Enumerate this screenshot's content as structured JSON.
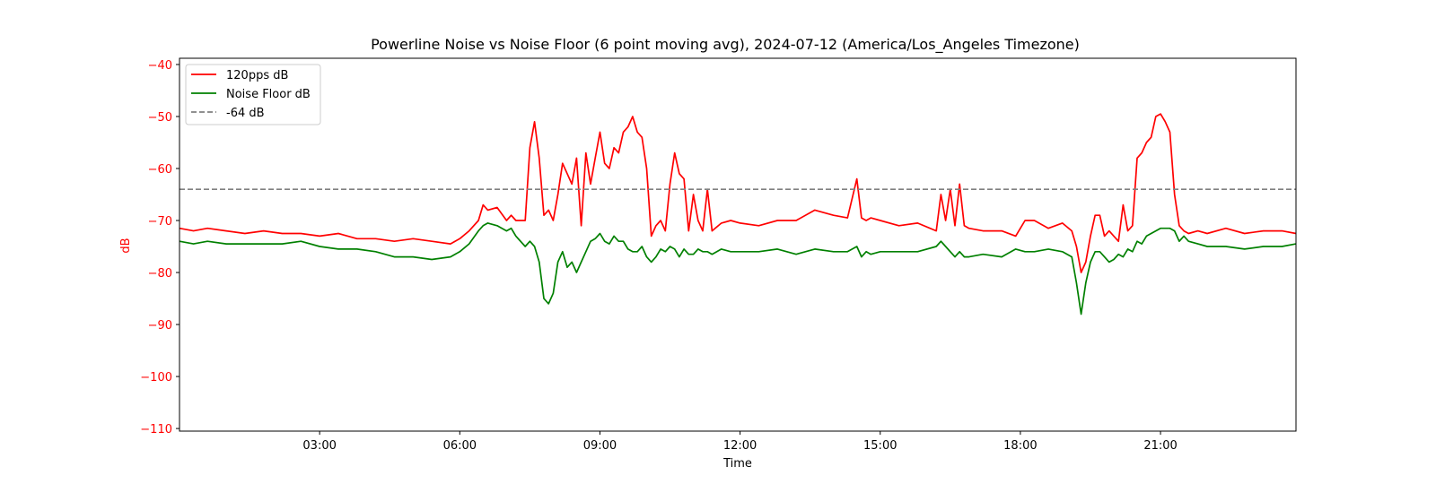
{
  "chart_data": {
    "type": "line",
    "title": "Powerline Noise vs Noise Floor (6 point moving avg), 2024-07-12 (America/Los_Angeles Timezone)",
    "xlabel": "Time",
    "ylabel": "dB",
    "x_unit": "hours",
    "xlim": [
      0,
      23.9
    ],
    "ylim": [
      -110.5,
      -38.8
    ],
    "x_ticks": [
      {
        "value": 3,
        "label": "03:00"
      },
      {
        "value": 6,
        "label": "06:00"
      },
      {
        "value": 9,
        "label": "09:00"
      },
      {
        "value": 12,
        "label": "12:00"
      },
      {
        "value": 15,
        "label": "15:00"
      },
      {
        "value": 18,
        "label": "18:00"
      },
      {
        "value": 21,
        "label": "21:00"
      }
    ],
    "y_ticks": [
      {
        "value": -40,
        "label": "−40"
      },
      {
        "value": -50,
        "label": "−50"
      },
      {
        "value": -60,
        "label": "−60"
      },
      {
        "value": -70,
        "label": "−70"
      },
      {
        "value": -80,
        "label": "−80"
      },
      {
        "value": -90,
        "label": "−90"
      },
      {
        "value": -100,
        "label": "−100"
      },
      {
        "value": -110,
        "label": "−110"
      }
    ],
    "grid": false,
    "legend_position": "upper-left",
    "series": [
      {
        "name": "120pps dB",
        "color": "#ff0000",
        "style": "solid",
        "x": [
          0,
          0.3,
          0.6,
          1.0,
          1.4,
          1.8,
          2.2,
          2.6,
          3.0,
          3.4,
          3.8,
          4.2,
          4.6,
          5.0,
          5.4,
          5.8,
          6.0,
          6.2,
          6.4,
          6.5,
          6.6,
          6.8,
          7.0,
          7.1,
          7.2,
          7.4,
          7.5,
          7.6,
          7.7,
          7.8,
          7.9,
          8.0,
          8.1,
          8.2,
          8.3,
          8.4,
          8.5,
          8.6,
          8.7,
          8.8,
          8.9,
          9.0,
          9.1,
          9.2,
          9.3,
          9.4,
          9.5,
          9.6,
          9.7,
          9.8,
          9.9,
          10.0,
          10.1,
          10.2,
          10.3,
          10.4,
          10.5,
          10.6,
          10.7,
          10.8,
          10.9,
          11.0,
          11.1,
          11.2,
          11.3,
          11.4,
          11.6,
          11.8,
          12.0,
          12.4,
          12.8,
          13.2,
          13.6,
          14.0,
          14.3,
          14.5,
          14.6,
          14.7,
          14.8,
          15.0,
          15.4,
          15.8,
          16.2,
          16.3,
          16.4,
          16.5,
          16.6,
          16.7,
          16.8,
          16.9,
          17.2,
          17.6,
          17.9,
          18.1,
          18.3,
          18.6,
          18.9,
          19.1,
          19.2,
          19.3,
          19.4,
          19.5,
          19.6,
          19.7,
          19.8,
          19.9,
          20.0,
          20.1,
          20.2,
          20.3,
          20.4,
          20.5,
          20.6,
          20.7,
          20.8,
          20.9,
          21.0,
          21.1,
          21.2,
          21.3,
          21.4,
          21.5,
          21.6,
          21.8,
          22.0,
          22.4,
          22.8,
          23.2,
          23.6,
          23.9
        ],
        "y": [
          -71.5,
          -72,
          -71.5,
          -72,
          -72.5,
          -72,
          -72.5,
          -72.5,
          -73,
          -72.5,
          -73.5,
          -73.5,
          -74,
          -73.5,
          -74,
          -74.5,
          -73.5,
          -72,
          -70,
          -67,
          -68,
          -67.5,
          -70,
          -69,
          -70,
          -70,
          -56,
          -51,
          -58,
          -69,
          -68,
          -70,
          -65,
          -59,
          -61,
          -63,
          -58,
          -71,
          -57,
          -63,
          -58,
          -53,
          -59,
          -60,
          -56,
          -57,
          -53,
          -52,
          -50,
          -53,
          -54,
          -60,
          -73,
          -71,
          -70,
          -72,
          -63,
          -57,
          -61,
          -62,
          -72,
          -65,
          -70,
          -72,
          -64,
          -72,
          -70.5,
          -70,
          -70.5,
          -71,
          -70,
          -70,
          -68,
          -69,
          -69.5,
          -62,
          -69.5,
          -70,
          -69.5,
          -70,
          -71,
          -70.5,
          -72,
          -65,
          -70,
          -64,
          -71,
          -63,
          -71,
          -71.5,
          -72,
          -72,
          -73,
          -70,
          -70,
          -71.5,
          -70.5,
          -72,
          -75,
          -80,
          -78,
          -73,
          -69,
          -69,
          -73,
          -72,
          -73,
          -74,
          -67,
          -72,
          -71,
          -58,
          -57,
          -55,
          -54,
          -50,
          -49.5,
          -51,
          -53,
          -65,
          -71,
          -72,
          -72.5,
          -72,
          -72.5,
          -71.5,
          -72.5,
          -72,
          -72,
          -72.5
        ]
      },
      {
        "name": "Noise Floor dB",
        "color": "#008000",
        "style": "solid",
        "x": [
          0,
          0.3,
          0.6,
          1.0,
          1.4,
          1.8,
          2.2,
          2.6,
          3.0,
          3.4,
          3.8,
          4.2,
          4.6,
          5.0,
          5.4,
          5.8,
          6.0,
          6.2,
          6.4,
          6.5,
          6.6,
          6.8,
          7.0,
          7.1,
          7.2,
          7.4,
          7.5,
          7.6,
          7.7,
          7.8,
          7.9,
          8.0,
          8.1,
          8.2,
          8.3,
          8.4,
          8.5,
          8.6,
          8.7,
          8.8,
          8.9,
          9.0,
          9.1,
          9.2,
          9.3,
          9.4,
          9.5,
          9.6,
          9.7,
          9.8,
          9.9,
          10.0,
          10.1,
          10.2,
          10.3,
          10.4,
          10.5,
          10.6,
          10.7,
          10.8,
          10.9,
          11.0,
          11.1,
          11.2,
          11.3,
          11.4,
          11.6,
          11.8,
          12.0,
          12.4,
          12.8,
          13.2,
          13.6,
          14.0,
          14.3,
          14.5,
          14.6,
          14.7,
          14.8,
          15.0,
          15.4,
          15.8,
          16.2,
          16.3,
          16.4,
          16.5,
          16.6,
          16.7,
          16.8,
          16.9,
          17.2,
          17.6,
          17.9,
          18.1,
          18.3,
          18.6,
          18.9,
          19.1,
          19.2,
          19.3,
          19.4,
          19.5,
          19.6,
          19.7,
          19.8,
          19.9,
          20.0,
          20.1,
          20.2,
          20.3,
          20.4,
          20.5,
          20.6,
          20.7,
          20.8,
          20.9,
          21.0,
          21.1,
          21.2,
          21.3,
          21.4,
          21.5,
          21.6,
          21.8,
          22.0,
          22.4,
          22.8,
          23.2,
          23.6,
          23.9
        ],
        "y": [
          -74,
          -74.5,
          -74,
          -74.5,
          -74.5,
          -74.5,
          -74.5,
          -74,
          -75,
          -75.5,
          -75.5,
          -76,
          -77,
          -77,
          -77.5,
          -77,
          -76,
          -74.5,
          -72,
          -71,
          -70.5,
          -71,
          -72,
          -71.5,
          -73,
          -75,
          -74,
          -75,
          -78,
          -85,
          -86,
          -84,
          -78,
          -76,
          -79,
          -78,
          -80,
          -78,
          -76,
          -74,
          -73.5,
          -72.5,
          -74,
          -74.5,
          -73,
          -74,
          -74,
          -75.5,
          -76,
          -76,
          -75,
          -77,
          -78,
          -77,
          -75.5,
          -76,
          -75,
          -75.5,
          -77,
          -75.5,
          -76.5,
          -76.5,
          -75.5,
          -76,
          -76,
          -76.5,
          -75.5,
          -76,
          -76,
          -76,
          -75.5,
          -76.5,
          -75.5,
          -76,
          -76,
          -75,
          -77,
          -76,
          -76.5,
          -76,
          -76,
          -76,
          -75,
          -74,
          -75,
          -76,
          -77,
          -76,
          -77,
          -77,
          -76.5,
          -77,
          -75.5,
          -76,
          -76,
          -75.5,
          -76,
          -77,
          -82,
          -88,
          -82,
          -78,
          -76,
          -76,
          -77,
          -78,
          -77.5,
          -76.5,
          -77,
          -75.5,
          -76,
          -74,
          -74.5,
          -73,
          -72.5,
          -72,
          -71.5,
          -71.5,
          -71.5,
          -72,
          -74,
          -73,
          -74,
          -74.5,
          -75,
          -75,
          -75.5,
          -75,
          -75,
          -74.5
        ]
      },
      {
        "name": "-64 dB",
        "color": "#808080",
        "style": "dashed",
        "x": [
          0,
          23.9
        ],
        "y": [
          -64,
          -64
        ]
      }
    ]
  }
}
